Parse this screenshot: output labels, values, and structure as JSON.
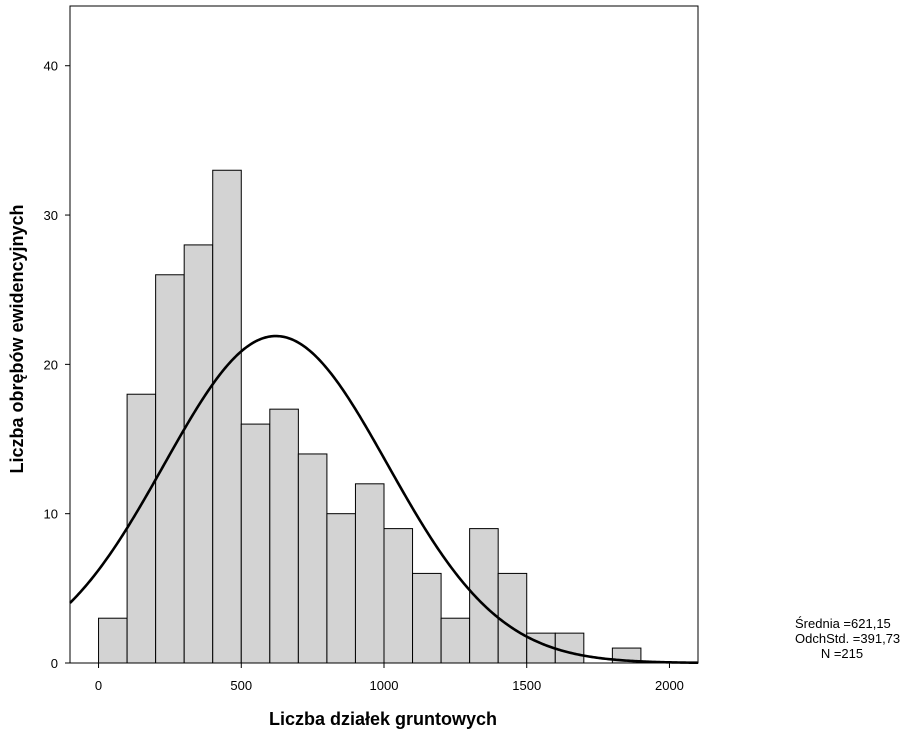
{
  "chart_data": {
    "type": "histogram",
    "title": "",
    "xlabel": "Liczba działek gruntowych",
    "ylabel": "Liczba obrębów ewidencyjnych",
    "bin_width": 100,
    "bin_starts": [
      0,
      100,
      200,
      300,
      400,
      500,
      600,
      700,
      800,
      900,
      1000,
      1100,
      1200,
      1300,
      1400,
      1500,
      1600,
      1700,
      1800
    ],
    "values": [
      3,
      18,
      26,
      28,
      33,
      16,
      17,
      14,
      10,
      12,
      9,
      6,
      3,
      9,
      6,
      2,
      2,
      0,
      1
    ],
    "xlim": [
      -100,
      2100
    ],
    "ylim": [
      0,
      44
    ],
    "xticks": [
      0,
      500,
      1000,
      1500,
      2000
    ],
    "yticks": [
      0,
      10,
      20,
      30,
      40
    ],
    "normal_curve": {
      "mean": 621.15,
      "std": 391.73,
      "n": 215
    },
    "bar_color": "#d3d3d3",
    "grid": false
  },
  "stats": {
    "mean_label": "Średnia =621,15",
    "std_label": "OdchStd. =391,73",
    "n_label": "N =215"
  }
}
